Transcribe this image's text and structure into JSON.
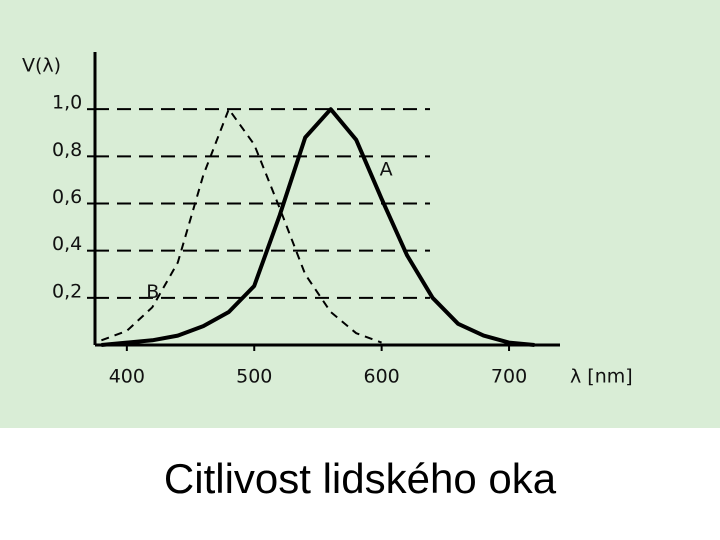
{
  "chart_data": {
    "type": "line",
    "title": "Citlivost lidského oka",
    "y_label": "V(λ)",
    "x_label": "λ [nm]",
    "x": [
      380,
      400,
      420,
      440,
      460,
      480,
      500,
      520,
      540,
      560,
      580,
      600,
      620,
      640,
      660,
      680,
      700,
      720
    ],
    "series": [
      {
        "name": "A",
        "color": "#000000",
        "style": "solid",
        "values": [
          0,
          0.01,
          0.02,
          0.04,
          0.08,
          0.14,
          0.25,
          0.55,
          0.88,
          1.0,
          0.87,
          0.62,
          0.38,
          0.2,
          0.09,
          0.04,
          0.01,
          0
        ]
      },
      {
        "name": "B",
        "color": "#000000",
        "style": "dashed",
        "values": [
          0.02,
          0.06,
          0.16,
          0.35,
          0.72,
          1.0,
          0.85,
          0.58,
          0.3,
          0.14,
          0.05,
          0.01,
          null,
          null,
          null,
          null,
          null,
          null
        ]
      }
    ],
    "xlim": [
      375,
      740
    ],
    "ylim": [
      0,
      1.2
    ],
    "xticks": [
      400,
      500,
      600,
      700
    ],
    "yticks": [
      {
        "value": 0.2,
        "label": "0,2"
      },
      {
        "value": 0.4,
        "label": "0,4"
      },
      {
        "value": 0.6,
        "label": "0,6"
      },
      {
        "value": 0.8,
        "label": "0,8"
      },
      {
        "value": 1.0,
        "label": "1,0"
      }
    ],
    "grid": true
  }
}
